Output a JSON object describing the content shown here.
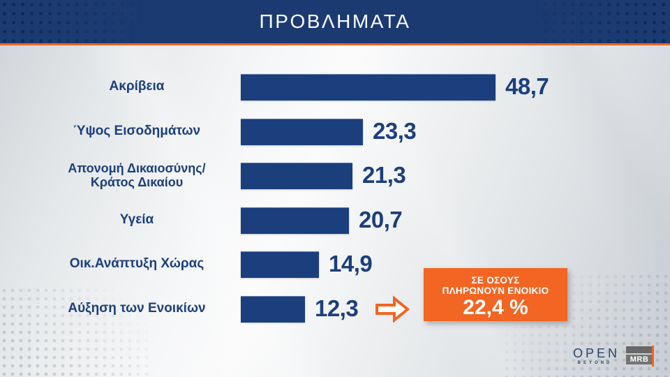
{
  "header": {
    "title": "ΠΡΟΒΛΗΜΑΤΑ"
  },
  "chart_data": {
    "type": "bar",
    "orientation": "horizontal",
    "title": "ΠΡΟΒΛΗΜΑΤΑ",
    "unit": "%",
    "categories": [
      "Ακρίβεια",
      "Ύψος Εισοδημάτων",
      "Απονομή Δικαιοσύνης/ Κράτος Δικαίου",
      "Υγεία",
      "Οικ.Ανάπτυξη Χώρας",
      "Αύξηση των Ενοικίων"
    ],
    "values": [
      48.7,
      23.3,
      21.3,
      20.7,
      14.9,
      12.3
    ],
    "value_labels": [
      "48,7",
      "23,3",
      "21,3",
      "20,7",
      "14,9",
      "12,3"
    ],
    "xlim": [
      0,
      52
    ],
    "grid": false,
    "legend": "none",
    "bar_color": "#1b3f7d",
    "annotation": {
      "applies_to": "Αύξηση των Ενοικίων",
      "lines": [
        "ΣΕ ΟΣΟΥΣ",
        "ΠΛΗΡΩΝΟΥΝ ΕΝΟΙΚΙΟ"
      ],
      "value": "22,4 %"
    }
  },
  "rows": [
    {
      "label_lines": [
        "Ακρίβεια"
      ],
      "value": 48.7,
      "value_label": "48,7"
    },
    {
      "label_lines": [
        "Ύψος Εισοδημάτων"
      ],
      "value": 23.3,
      "value_label": "23,3"
    },
    {
      "label_lines": [
        "Απονομή Δικαιοσύνης/",
        "Κράτος Δικαίου"
      ],
      "value": 21.3,
      "value_label": "21,3"
    },
    {
      "label_lines": [
        "Υγεία"
      ],
      "value": 20.7,
      "value_label": "20,7"
    },
    {
      "label_lines": [
        "Οικ.Ανάπτυξη Χώρας"
      ],
      "value": 14.9,
      "value_label": "14,9"
    },
    {
      "label_lines": [
        "Αύξηση των Ενοικίων"
      ],
      "value": 12.3,
      "value_label": "12,3"
    }
  ],
  "callout": {
    "line1": "ΣΕ ΟΣΟΥΣ",
    "line2": "ΠΛΗΡΩΝΟΥΝ ΕΝΟΙΚΙΟ",
    "value": "22,4 %"
  },
  "footer": {
    "channel_logo": "OPEN",
    "channel_tagline": "BEYOND",
    "agency_logo": "MRB"
  },
  "colors": {
    "header_bg": "#1c3a72",
    "accent_orange": "#f26522",
    "bar_navy": "#1b3f7d",
    "text_navy": "#1b3f7d",
    "background_light": "#eceeef",
    "callout_text": "#ffffff",
    "title_text": "#fcfdfe",
    "mrb_gray": "#747474"
  }
}
